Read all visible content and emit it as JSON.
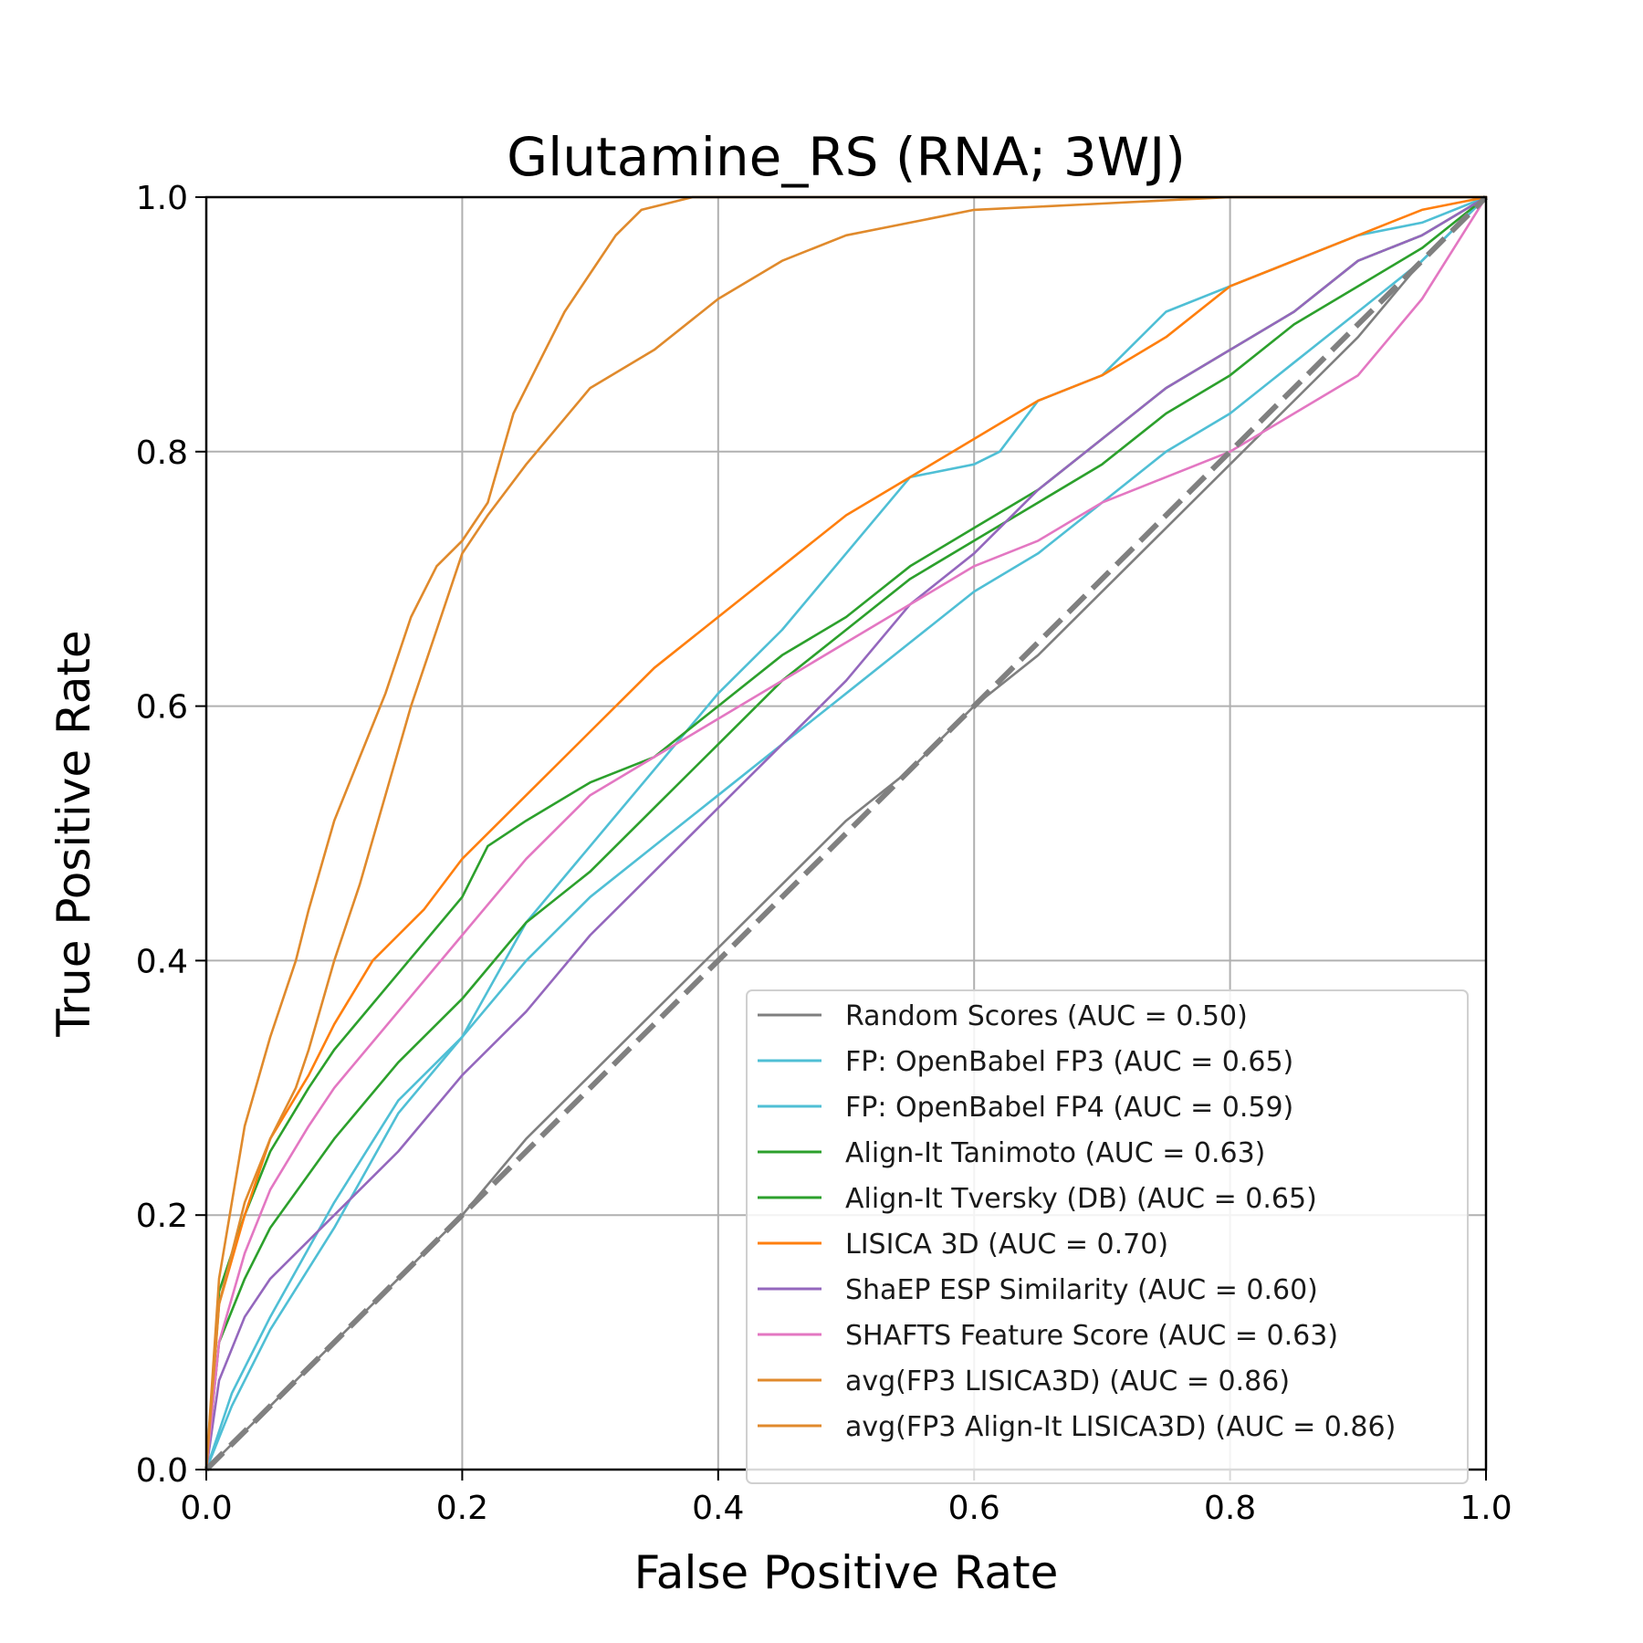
{
  "chart_data": {
    "type": "line",
    "title": "Glutamine_RS (RNA; 3WJ)",
    "xlabel": "False Positive Rate",
    "ylabel": "True Positive Rate",
    "xlim": [
      0.0,
      1.0
    ],
    "ylim": [
      0.0,
      1.0
    ],
    "xticks": [
      "0.0",
      "0.2",
      "0.4",
      "0.6",
      "0.8",
      "1.0"
    ],
    "yticks": [
      "0.0",
      "0.2",
      "0.4",
      "0.6",
      "0.8",
      "1.0"
    ],
    "grid": true,
    "legend_position": "lower-right",
    "diagonal": {
      "color": "#808080",
      "style": "dashed",
      "x": [
        0.0,
        1.0
      ],
      "y": [
        0.0,
        1.0
      ]
    },
    "series": [
      {
        "name": "Random Scores (AUC = 0.50)",
        "color": "#7f7f7f",
        "x": [
          0.0,
          0.05,
          0.1,
          0.15,
          0.2,
          0.25,
          0.3,
          0.35,
          0.4,
          0.45,
          0.5,
          0.55,
          0.6,
          0.65,
          0.7,
          0.75,
          0.8,
          0.85,
          0.9,
          0.95,
          1.0
        ],
        "y": [
          0.0,
          0.05,
          0.1,
          0.15,
          0.2,
          0.26,
          0.31,
          0.36,
          0.41,
          0.46,
          0.51,
          0.55,
          0.6,
          0.64,
          0.69,
          0.74,
          0.79,
          0.84,
          0.89,
          0.95,
          1.0
        ]
      },
      {
        "name": "FP: OpenBabel FP3 (AUC = 0.65)",
        "color": "#4fbfd5",
        "x": [
          0.0,
          0.02,
          0.05,
          0.1,
          0.15,
          0.2,
          0.25,
          0.3,
          0.35,
          0.4,
          0.45,
          0.5,
          0.55,
          0.6,
          0.62,
          0.65,
          0.7,
          0.75,
          0.8,
          0.85,
          0.9,
          0.95,
          1.0
        ],
        "y": [
          0.0,
          0.06,
          0.12,
          0.21,
          0.29,
          0.34,
          0.43,
          0.49,
          0.55,
          0.61,
          0.66,
          0.72,
          0.78,
          0.79,
          0.8,
          0.84,
          0.86,
          0.91,
          0.93,
          0.95,
          0.97,
          0.98,
          1.0
        ]
      },
      {
        "name": "FP: OpenBabel FP4 (AUC = 0.59)",
        "color": "#4fbfd5",
        "x": [
          0.0,
          0.02,
          0.05,
          0.1,
          0.15,
          0.2,
          0.25,
          0.3,
          0.35,
          0.4,
          0.45,
          0.5,
          0.55,
          0.6,
          0.65,
          0.7,
          0.75,
          0.8,
          0.85,
          0.9,
          0.95,
          1.0
        ],
        "y": [
          0.0,
          0.05,
          0.11,
          0.19,
          0.28,
          0.34,
          0.4,
          0.45,
          0.49,
          0.53,
          0.57,
          0.61,
          0.65,
          0.69,
          0.72,
          0.76,
          0.8,
          0.83,
          0.87,
          0.91,
          0.95,
          1.0
        ]
      },
      {
        "name": "Align-It Tanimoto (AUC = 0.63)",
        "color": "#2ca02c",
        "x": [
          0.0,
          0.01,
          0.03,
          0.05,
          0.1,
          0.15,
          0.2,
          0.25,
          0.3,
          0.35,
          0.4,
          0.45,
          0.5,
          0.55,
          0.6,
          0.65,
          0.7,
          0.75,
          0.8,
          0.85,
          0.9,
          0.95,
          1.0
        ],
        "y": [
          0.0,
          0.1,
          0.15,
          0.19,
          0.26,
          0.32,
          0.37,
          0.43,
          0.47,
          0.52,
          0.57,
          0.62,
          0.66,
          0.7,
          0.73,
          0.76,
          0.79,
          0.83,
          0.86,
          0.9,
          0.93,
          0.96,
          1.0
        ]
      },
      {
        "name": "Align-It Tversky (DB) (AUC = 0.65)",
        "color": "#2ca02c",
        "x": [
          0.0,
          0.01,
          0.03,
          0.05,
          0.08,
          0.1,
          0.15,
          0.2,
          0.22,
          0.25,
          0.3,
          0.35,
          0.4,
          0.45,
          0.5,
          0.55,
          0.6,
          0.65,
          0.7,
          0.75,
          0.8,
          0.85,
          0.9,
          0.95,
          1.0
        ],
        "y": [
          0.0,
          0.14,
          0.2,
          0.25,
          0.3,
          0.33,
          0.39,
          0.45,
          0.49,
          0.51,
          0.54,
          0.56,
          0.6,
          0.64,
          0.67,
          0.71,
          0.74,
          0.77,
          0.81,
          0.85,
          0.88,
          0.91,
          0.95,
          0.97,
          1.0
        ]
      },
      {
        "name": "LISICA 3D (AUC = 0.70)",
        "color": "#ff7f0e",
        "x": [
          0.0,
          0.01,
          0.03,
          0.05,
          0.08,
          0.1,
          0.13,
          0.15,
          0.17,
          0.2,
          0.25,
          0.3,
          0.35,
          0.4,
          0.45,
          0.5,
          0.55,
          0.6,
          0.65,
          0.7,
          0.75,
          0.8,
          0.85,
          0.9,
          0.95,
          1.0
        ],
        "y": [
          0.0,
          0.13,
          0.2,
          0.26,
          0.31,
          0.35,
          0.4,
          0.42,
          0.44,
          0.48,
          0.53,
          0.58,
          0.63,
          0.67,
          0.71,
          0.75,
          0.78,
          0.81,
          0.84,
          0.86,
          0.89,
          0.93,
          0.95,
          0.97,
          0.99,
          1.0
        ]
      },
      {
        "name": "ShaEP ESP Similarity (AUC = 0.60)",
        "color": "#9467bd",
        "x": [
          0.0,
          0.01,
          0.03,
          0.05,
          0.08,
          0.1,
          0.15,
          0.2,
          0.25,
          0.3,
          0.35,
          0.4,
          0.45,
          0.5,
          0.55,
          0.6,
          0.65,
          0.7,
          0.75,
          0.8,
          0.85,
          0.9,
          0.95,
          1.0
        ],
        "y": [
          0.0,
          0.07,
          0.12,
          0.15,
          0.18,
          0.2,
          0.25,
          0.31,
          0.36,
          0.42,
          0.47,
          0.52,
          0.57,
          0.62,
          0.68,
          0.72,
          0.77,
          0.81,
          0.85,
          0.88,
          0.91,
          0.95,
          0.97,
          1.0
        ]
      },
      {
        "name": "SHAFTS Feature Score (AUC = 0.63)",
        "color": "#e377c2",
        "x": [
          0.0,
          0.01,
          0.03,
          0.05,
          0.08,
          0.1,
          0.15,
          0.2,
          0.25,
          0.3,
          0.35,
          0.4,
          0.45,
          0.5,
          0.55,
          0.6,
          0.65,
          0.7,
          0.75,
          0.8,
          0.85,
          0.9,
          0.95,
          1.0
        ],
        "y": [
          0.0,
          0.1,
          0.17,
          0.22,
          0.27,
          0.3,
          0.36,
          0.42,
          0.48,
          0.53,
          0.56,
          0.59,
          0.62,
          0.65,
          0.68,
          0.71,
          0.73,
          0.76,
          0.78,
          0.8,
          0.83,
          0.86,
          0.92,
          1.0
        ]
      },
      {
        "name": "avg(FP3 LISICA3D) (AUC = 0.86)",
        "color": "#e08a2c",
        "x": [
          0.0,
          0.01,
          0.02,
          0.03,
          0.05,
          0.07,
          0.08,
          0.1,
          0.12,
          0.14,
          0.16,
          0.18,
          0.2,
          0.22,
          0.25,
          0.3,
          0.35,
          0.4,
          0.45,
          0.5,
          0.55,
          0.6,
          0.7,
          0.8,
          0.9,
          1.0
        ],
        "y": [
          0.0,
          0.13,
          0.17,
          0.21,
          0.26,
          0.3,
          0.33,
          0.4,
          0.46,
          0.53,
          0.6,
          0.66,
          0.72,
          0.75,
          0.79,
          0.85,
          0.88,
          0.92,
          0.95,
          0.97,
          0.98,
          0.99,
          0.995,
          1.0,
          1.0,
          1.0
        ]
      },
      {
        "name": "avg(FP3 Align-It LISICA3D) (AUC = 0.86)",
        "color": "#e08a2c",
        "x": [
          0.0,
          0.01,
          0.02,
          0.03,
          0.05,
          0.07,
          0.08,
          0.1,
          0.12,
          0.14,
          0.16,
          0.18,
          0.2,
          0.22,
          0.24,
          0.26,
          0.28,
          0.3,
          0.32,
          0.34,
          0.38,
          0.42,
          0.5,
          0.6,
          0.8,
          1.0
        ],
        "y": [
          0.0,
          0.15,
          0.21,
          0.27,
          0.34,
          0.4,
          0.44,
          0.51,
          0.56,
          0.61,
          0.67,
          0.71,
          0.73,
          0.76,
          0.83,
          0.87,
          0.91,
          0.94,
          0.97,
          0.99,
          1.0,
          1.0,
          1.0,
          1.0,
          1.0,
          1.0
        ]
      }
    ]
  }
}
